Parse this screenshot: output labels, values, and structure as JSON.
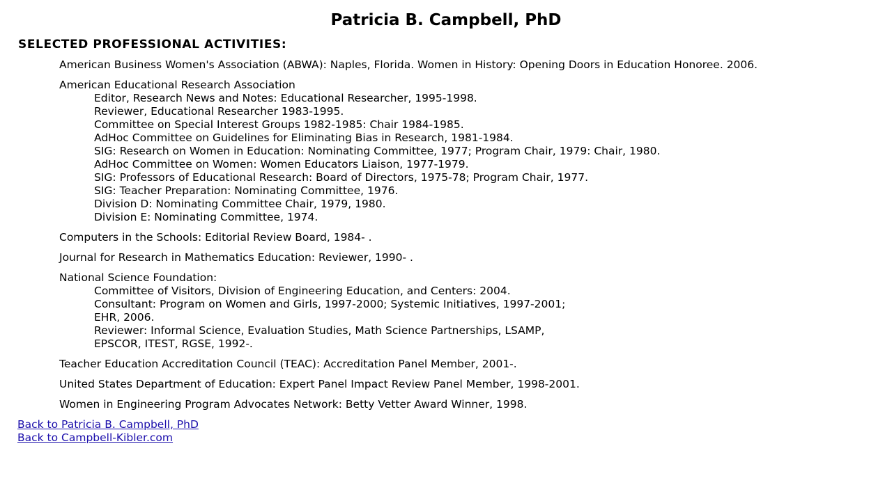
{
  "page": {
    "title": "Patricia B. Campbell, PhD",
    "section_heading": "SELECTED PROFESSIONAL ACTIVITIES:"
  },
  "activities": {
    "abwa": "American Business Women's Association (ABWA): Naples, Florida. Women in History: Opening Doors in Education Honoree. 2006.",
    "aera": {
      "label": "American Educational Research Association",
      "items": [
        "Editor, Research News and Notes: Educational Researcher, 1995-1998.",
        "Reviewer, Educational Researcher 1983-1995.",
        "Committee on Special Interest Groups 1982-1985: Chair 1984-1985.",
        "AdHoc Committee on Guidelines for Eliminating Bias in Research, 1981-1984.",
        "SIG: Research on Women in Education: Nominating Committee, 1977; Program Chair, 1979: Chair, 1980.",
        "AdHoc Committee on Women: Women Educators Liaison, 1977-1979.",
        "SIG: Professors of Educational Research: Board of Directors, 1975-78; Program Chair, 1977.",
        "SIG: Teacher Preparation: Nominating Committee, 1976.",
        "Division D: Nominating Committee Chair, 1979, 1980.",
        "Division E: Nominating Committee, 1974."
      ]
    },
    "computers_in_schools": "Computers in the Schools: Editorial Review Board, 1984- .",
    "jrme": "Journal for Research in Mathematics Education: Reviewer, 1990- .",
    "nsf": {
      "label": "National Science Foundation:",
      "items": [
        "Committee of Visitors, Division of Engineering Education, and Centers: 2004.",
        "Consultant: Program on Women and Girls, 1997-2000; Systemic Initiatives, 1997-2001;",
        "EHR, 2006.",
        "Reviewer: Informal Science, Evaluation Studies, Math Science Partnerships, LSAMP,",
        "EPSCOR, ITEST, RGSE, 1992-."
      ]
    },
    "teac": "Teacher Education Accreditation Council (TEAC): Accreditation Panel Member, 2001-.",
    "usdoe": "United States Department of Education: Expert Panel Impact Review Panel Member, 1998-2001.",
    "wepan": "Women in Engineering Program Advocates Network: Betty Vetter Award Winner, 1998."
  },
  "links": {
    "back_campbell": "Back to Patricia B. Campbell, PhD",
    "back_ck": "Back to Campbell-Kibler.com"
  },
  "colors": {
    "link": "#1a0dab",
    "text": "#000000",
    "background": "#ffffff"
  }
}
